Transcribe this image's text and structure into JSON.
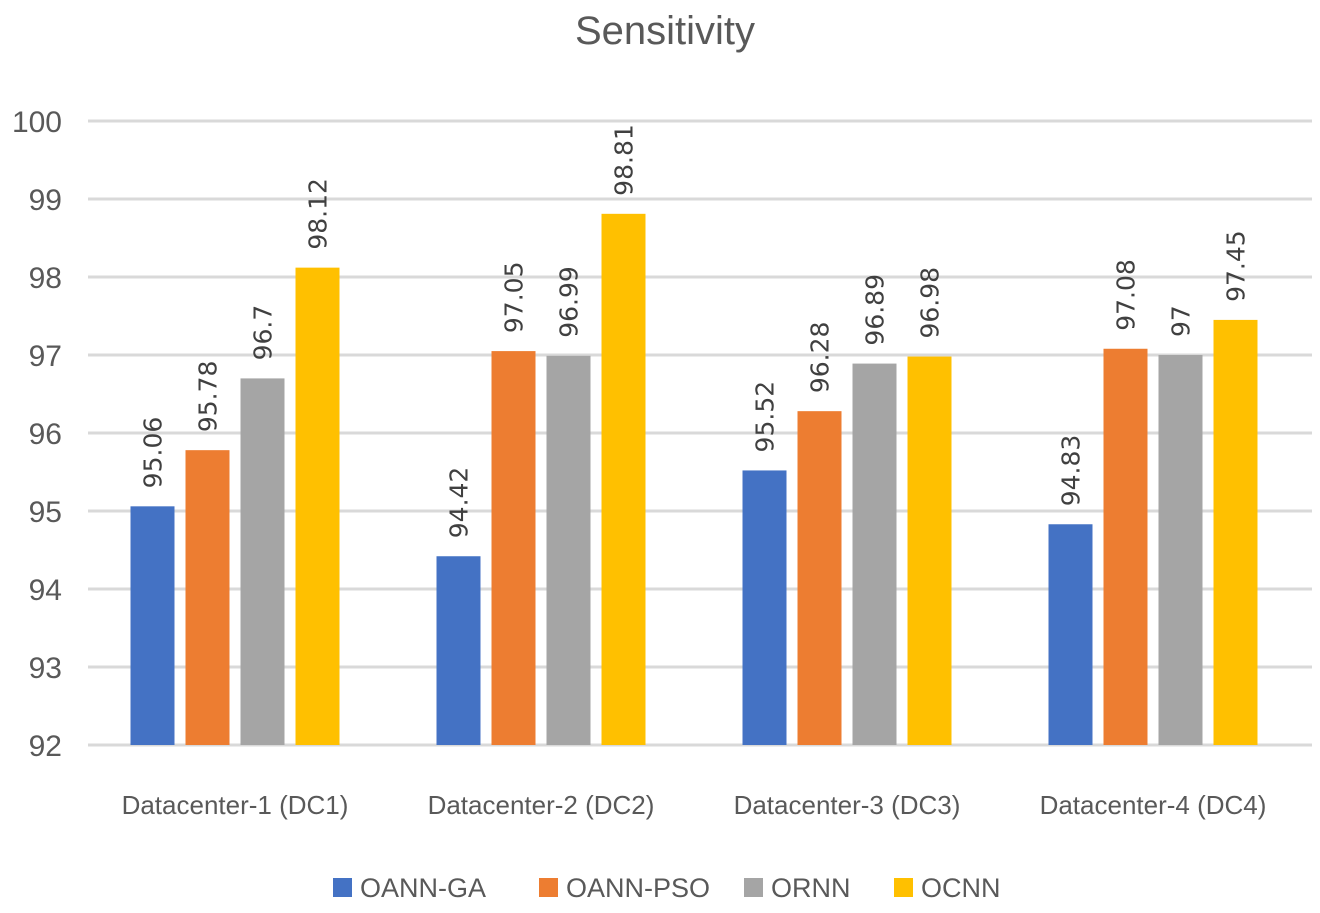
{
  "chart_data": {
    "type": "bar",
    "title": "Sensitivity",
    "categories": [
      "Datacenter-1 (DC1)",
      "Datacenter-2 (DC2)",
      "Datacenter-3 (DC3)",
      "Datacenter-4 (DC4)"
    ],
    "series": [
      {
        "name": "OANN-GA",
        "color": "#4472C4",
        "values": [
          95.06,
          94.42,
          95.52,
          94.83
        ]
      },
      {
        "name": "OANN-PSO",
        "color": "#ED7D31",
        "values": [
          95.78,
          97.05,
          96.28,
          97.08
        ]
      },
      {
        "name": "ORNN",
        "color": "#A5A5A5",
        "values": [
          96.7,
          96.99,
          96.89,
          97
        ]
      },
      {
        "name": "OCNN",
        "color": "#FFC000",
        "values": [
          98.12,
          98.81,
          96.98,
          97.45
        ]
      }
    ],
    "ylim": [
      92,
      100
    ],
    "yticks": [
      92,
      93,
      94,
      95,
      96,
      97,
      98,
      99,
      100
    ],
    "grid": true,
    "legend": "bottom",
    "xlabel": "",
    "ylabel": ""
  }
}
